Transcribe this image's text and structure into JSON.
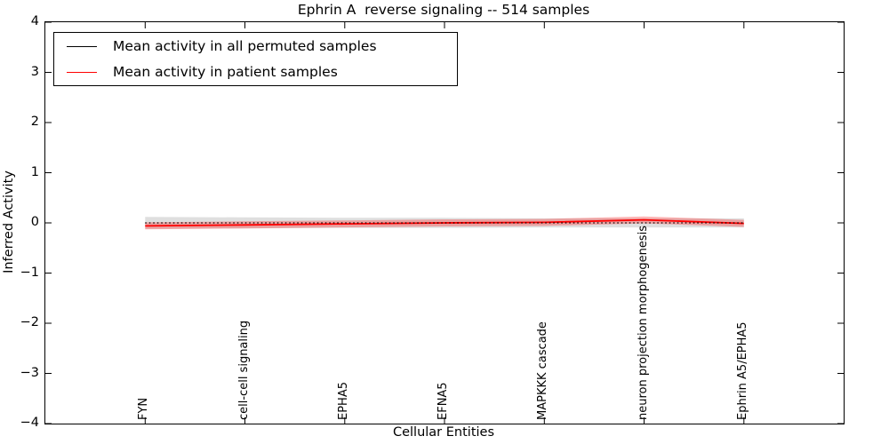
{
  "title": "Ephrin A  reverse signaling -- 514 samples",
  "legend": {
    "items": [
      {
        "label": "Mean activity in all permuted samples",
        "color": "#000000"
      },
      {
        "label": "Mean activity in patient samples",
        "color": "#ff0000"
      }
    ]
  },
  "chart_data": {
    "type": "line",
    "title": "Ephrin A  reverse signaling -- 514 samples",
    "xlabel": "Cellular Entities",
    "ylabel": "Inferred Activity",
    "ylim": [
      -4,
      4
    ],
    "ytick_values": [
      4,
      3,
      2,
      1,
      0,
      -1,
      -2,
      -3,
      -4
    ],
    "ytick_labels": [
      "4",
      "3",
      "2",
      "1",
      "0",
      "−1",
      "−2",
      "−3",
      "−4"
    ],
    "grid": false,
    "legend_position": "upper left",
    "categories": [
      "FYN",
      "cell-cell signaling",
      "EPHA5",
      "EFNA5",
      "MAPKKK cascade",
      "neuron projection morphogenesis",
      "Ephrin A5/EPHA5"
    ],
    "series": [
      {
        "name": "Mean activity in all permuted samples",
        "color": "#000000",
        "line_style": "dotted",
        "line_width": 1.3,
        "values": [
          0,
          0,
          0,
          0,
          0,
          0,
          0
        ],
        "band_halfwidths": [
          0.12,
          0.11,
          0.1,
          0.1,
          0.09,
          0.09,
          0.09
        ],
        "band_color": "rgba(110,110,110,0.22)"
      },
      {
        "name": "Mean activity in patient samples",
        "color": "#ff0000",
        "line_style": "solid",
        "line_width": 1.8,
        "values": [
          -0.06,
          -0.04,
          -0.02,
          0.0,
          0.01,
          0.06,
          -0.01
        ],
        "band_halfwidths": [
          0.07,
          0.07,
          0.07,
          0.07,
          0.07,
          0.07,
          0.07
        ],
        "band_color": "rgba(255,0,0,0.28)"
      }
    ]
  }
}
